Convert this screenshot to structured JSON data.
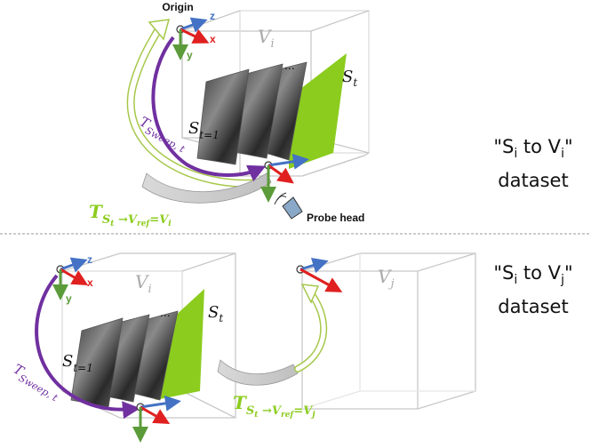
{
  "panel_top": {
    "origin_label": "Origin",
    "axis_z": "z",
    "axis_x": "x",
    "axis_y": "y",
    "volume_label": "V",
    "volume_sub": "i",
    "slice_label": "S",
    "slice_sub": "t",
    "first_slice_label": "S",
    "first_slice_sub": "t=1",
    "ellipsis": "...",
    "sweep_T": "T",
    "sweep_sub": "Sweep, t",
    "transform_T": "T",
    "transform_sub": "S",
    "transform_sub2": "t",
    "transform_arrow": " →V",
    "transform_ref": "ref",
    "transform_eq": "=V",
    "transform_target": "i",
    "probe_label": "Probe head",
    "dataset_line1_pre": "\"S",
    "dataset_line1_s": "i",
    "dataset_line1_mid": " to V",
    "dataset_line1_v": "i",
    "dataset_line1_post": "\"",
    "dataset_line2": "dataset"
  },
  "panel_bottom": {
    "axis_z": "z",
    "axis_x": "x",
    "axis_y": "y",
    "volume_i_label": "V",
    "volume_i_sub": "i",
    "volume_j_label": "V",
    "volume_j_sub": "j",
    "slice_label": "S",
    "slice_sub": "t",
    "first_slice_label": "S",
    "first_slice_sub": "t=1",
    "ellipsis": "...",
    "sweep_T": "T",
    "sweep_sub": "Sweep, t",
    "transform_T": "T",
    "transform_sub": "S",
    "transform_sub2": "t",
    "transform_arrow": " →V",
    "transform_ref": "ref",
    "transform_eq": "=V",
    "transform_target": "j",
    "dataset_line1_pre": "\"S",
    "dataset_line1_s": "i",
    "dataset_line1_mid": " to V",
    "dataset_line1_v": "j",
    "dataset_line1_post": "\"",
    "dataset_line2": "dataset"
  },
  "colors": {
    "axis_z": "#4472c4",
    "axis_x": "#e02020",
    "axis_y": "#5b9b3a",
    "slice_plane": "#8ccc1e",
    "sweep_arrow": "#7030a0",
    "transform_text": "#8ccc1e",
    "outline_arrow": "#a6c84a",
    "box_edge": "#c8c8c8",
    "volume_label": "#aaaaaa"
  }
}
